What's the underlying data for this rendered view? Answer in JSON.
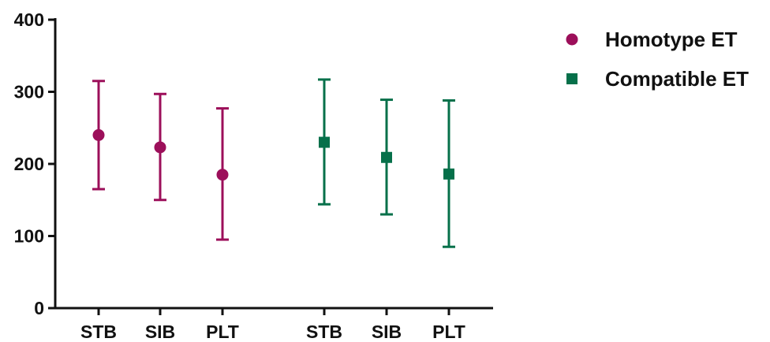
{
  "chart_data": {
    "type": "scatter",
    "subtype": "mean-with-error-bars",
    "title": "",
    "xlabel": "",
    "ylabel": "",
    "ylim": [
      0,
      400
    ],
    "yticks": [
      0,
      100,
      200,
      300,
      400
    ],
    "grid": false,
    "legend_position": "top-right",
    "series": [
      {
        "name": "Homotype ET",
        "color": "#9c0f5a",
        "marker": "circle",
        "categories": [
          "STB",
          "SIB",
          "PLT"
        ],
        "mean": [
          240,
          223,
          185
        ],
        "upper": [
          315,
          297,
          277
        ],
        "lower": [
          165,
          150,
          95
        ]
      },
      {
        "name": "Compatible ET",
        "color": "#06704a",
        "marker": "square",
        "categories": [
          "STB",
          "SIB",
          "PLT"
        ],
        "mean": [
          230,
          209,
          186
        ],
        "upper": [
          317,
          289,
          288
        ],
        "lower": [
          144,
          130,
          85
        ]
      }
    ]
  }
}
